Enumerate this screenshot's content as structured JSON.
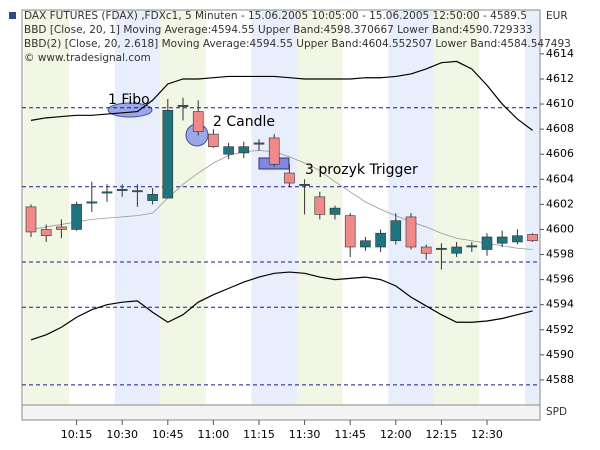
{
  "chart_data": {
    "type": "candlestick",
    "title": "DAX FUTURES (FDAX) ,FDXc1, 5 Minuten - 15.06.2005 10:05:00 - 15.06.2005 12:50:00 - 4589.5",
    "currency": "EUR",
    "indicator_1": "BBD [Close, 20, 1] Moving Average:4594.55 Upper Band:4598.370667 Lower Band:4590.729333",
    "indicator_2": "BBD(2) [Close, 20, 2.618] Moving Average:4594.55 Upper Band:4604.552507 Lower Band:4584.547493",
    "copyright": "© www.tradesignal.com",
    "lower_panel": "SPD",
    "categories": [
      null,
      null,
      null,
      "10:15",
      null,
      null,
      "10:30",
      null,
      null,
      "10:45",
      null,
      null,
      "11:00",
      null,
      null,
      "11:15",
      null,
      null,
      "11:30",
      null,
      null,
      "11:45",
      null,
      null,
      "12:00",
      null,
      null,
      "12:15",
      null,
      null,
      "12:30",
      null,
      null,
      null
    ],
    "open": [
      4601.8,
      4600,
      4600.2,
      4600,
      4602.1,
      4602.9,
      4603.1,
      4603,
      4602.3,
      4602.5,
      4609.8,
      4609.4,
      4607.6,
      4606,
      4606.1,
      4606.8,
      4607.3,
      4604.5,
      4603.5,
      4602.6,
      4601.2,
      4601.1,
      4598.6,
      4598.6,
      4599.1,
      4601,
      4598.6,
      4598.4,
      4598.1,
      4598.6,
      4598.4,
      4598.9,
      4599,
      4599.6
    ],
    "high": [
      4602,
      4600.4,
      4600.8,
      4602.2,
      4603.8,
      4603.6,
      4603.6,
      4603.6,
      4603.3,
      4610.4,
      4610.5,
      4610.3,
      4608,
      4606.9,
      4607,
      4607.2,
      4607.6,
      4605.2,
      4604,
      4603,
      4601.9,
      4601.3,
      4599.4,
      4600,
      4601.3,
      4601.3,
      4598.8,
      4598.9,
      4599,
      4599,
      4599.7,
      4599.9,
      4600,
      4599.7
    ],
    "low": [
      4599.4,
      4599,
      4599.3,
      4599.9,
      4601.4,
      4602.2,
      4602.6,
      4601.8,
      4602,
      4602.5,
      4608.7,
      4607.5,
      4606.5,
      4605.6,
      4605.7,
      4606.3,
      4605,
      4603.4,
      4601.2,
      4600.8,
      4600.8,
      4597.8,
      4598.3,
      4598.2,
      4598.8,
      4598.4,
      4597.6,
      4596.8,
      4597.8,
      4598.2,
      4597.9,
      4598.6,
      4598.8,
      4599
    ],
    "close": [
      4599.8,
      4599.5,
      4600,
      4602,
      4602.2,
      4603,
      4603.2,
      4603.1,
      4602.8,
      4609.5,
      4609.9,
      4607.8,
      4606.6,
      4606.6,
      4606.6,
      4606.9,
      4605.2,
      4603.7,
      4603.6,
      4601.2,
      4601.7,
      4598.6,
      4599.1,
      4599.7,
      4600.7,
      4598.6,
      4598.1,
      4598.5,
      4598.6,
      4598.7,
      4599.4,
      4599.4,
      4599.5,
      4599.1
    ],
    "up_color": "#1f7480",
    "down_color": "#f08a8a",
    "series": [
      {
        "name": "Upper Band",
        "color": "#000000",
        "values": [
          4608.7,
          4608.9,
          4609,
          4609.1,
          4609.1,
          4609.2,
          4609.3,
          4609.4,
          4610.3,
          4611.6,
          4612,
          4612,
          4612.1,
          4612.2,
          4612.2,
          4612.2,
          4612.2,
          4612.1,
          4612,
          4612,
          4612,
          4612,
          4612.1,
          4612.1,
          4612.2,
          4612.4,
          4612.8,
          4613.3,
          4613.4,
          4612.8,
          4611.5,
          4610,
          4608.8,
          4607.9
        ]
      },
      {
        "name": "Moving Average",
        "color": "#999999",
        "values": [
          4600,
          4600.2,
          4600.4,
          4600.6,
          4600.8,
          4600.9,
          4601,
          4601.1,
          4601.3,
          4602.5,
          4603.6,
          4604.5,
          4605.3,
          4605.9,
          4606.2,
          4606.3,
          4606.2,
          4605.8,
          4605.3,
          4604.7,
          4603.8,
          4603,
          4602.2,
          4601.6,
          4601.1,
          4600.6,
          4600.2,
          4599.7,
          4599.3,
          4599.1,
          4598.9,
          4598.7,
          4598.5,
          4598.4
        ]
      },
      {
        "name": "Lower Band",
        "color": "#000000",
        "values": [
          4591.2,
          4591.6,
          4592.2,
          4593,
          4593.6,
          4594,
          4594.2,
          4594.3,
          4593.4,
          4592.6,
          4593.2,
          4594.2,
          4594.8,
          4595.3,
          4595.8,
          4596.2,
          4596.5,
          4596.6,
          4596.5,
          4596.2,
          4596,
          4596.1,
          4596.2,
          4596,
          4595.5,
          4594.6,
          4593.9,
          4593.2,
          4592.6,
          4592.6,
          4592.7,
          4592.9,
          4593.2,
          4593.5
        ]
      }
    ],
    "levels": [
      4609.7,
      4603.4,
      4597.4,
      4593.8,
      4587.6
    ],
    "level_color": "#1a1a8c",
    "annotations": [
      "1 Fibo",
      "2 Candle",
      "3 prozyk Trigger"
    ],
    "ylim": [
      4586,
      4617.5
    ],
    "yticks": [
      4588,
      4590,
      4592,
      4594,
      4596,
      4598,
      4600,
      4602,
      4604,
      4606,
      4608,
      4610,
      4612,
      4614
    ]
  }
}
